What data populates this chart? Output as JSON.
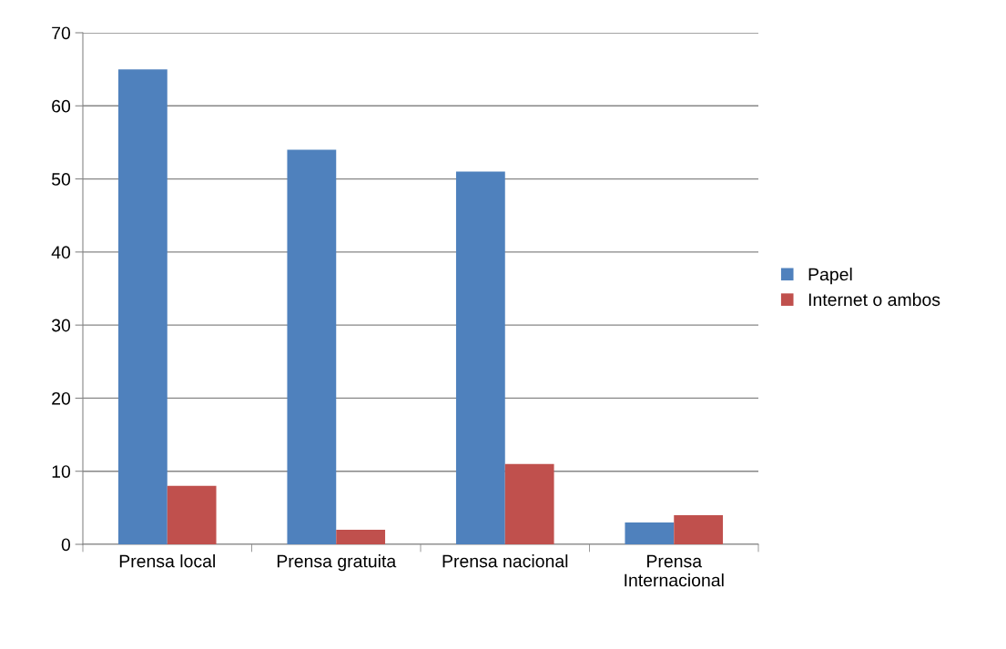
{
  "chart_data": {
    "type": "bar",
    "categories": [
      "Prensa local",
      "Prensa gratuita",
      "Prensa nacional",
      "Prensa\nInternacional"
    ],
    "series": [
      {
        "name": "Papel",
        "color": "#4f81bd",
        "values": [
          65,
          54,
          51,
          3
        ]
      },
      {
        "name": "Internet o ambos",
        "color": "#c0504d",
        "values": [
          8,
          2,
          11,
          4
        ]
      }
    ],
    "ylim": [
      0,
      70
    ],
    "yticks": [
      0,
      10,
      20,
      30,
      40,
      50,
      60,
      70
    ],
    "grid": "y",
    "legend": "right"
  }
}
